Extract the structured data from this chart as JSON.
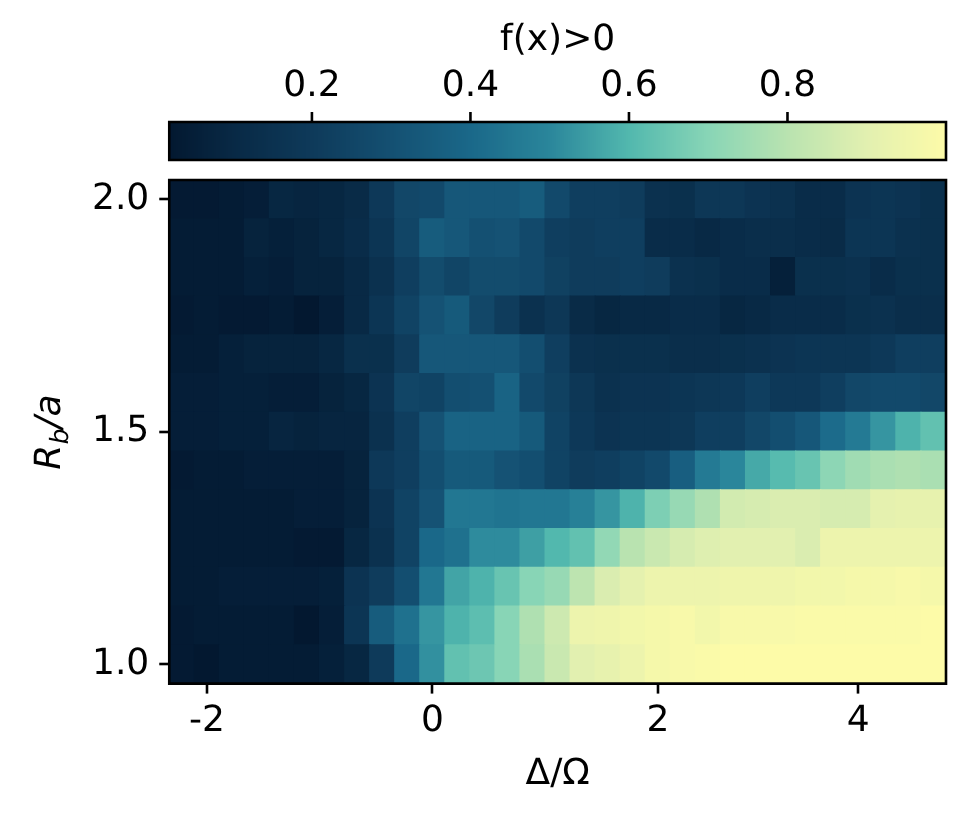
{
  "chart_data": {
    "type": "heatmap",
    "xlabel": "Δ/Ω",
    "ylabel": "R$_{b}$/a",
    "clabel": "f(x)>0",
    "categories": [
      null,
      "-2",
      null,
      null,
      null,
      null,
      null,
      null,
      null,
      null,
      "0",
      null,
      null,
      null,
      null,
      null,
      null,
      null,
      null,
      "2",
      null,
      null,
      null,
      null,
      null,
      null,
      null,
      "4",
      null,
      null,
      null
    ],
    "y_categories": [
      "2.0",
      null,
      null,
      null,
      null,
      null,
      "1.5",
      null,
      null,
      null,
      null,
      null,
      "1.0"
    ],
    "cells": [
      [
        0.03,
        0.03,
        0.04,
        0.05,
        0.09,
        0.08,
        0.09,
        0.11,
        0.19,
        0.26,
        0.27,
        0.33,
        0.33,
        0.33,
        0.35,
        0.27,
        0.22,
        0.22,
        0.21,
        0.15,
        0.14,
        0.18,
        0.18,
        0.16,
        0.15,
        0.12,
        0.12,
        0.16,
        0.17,
        0.16,
        0.14
      ],
      [
        0.04,
        0.04,
        0.04,
        0.07,
        0.06,
        0.07,
        0.09,
        0.12,
        0.17,
        0.25,
        0.35,
        0.33,
        0.3,
        0.31,
        0.27,
        0.22,
        0.21,
        0.22,
        0.22,
        0.12,
        0.12,
        0.1,
        0.12,
        0.13,
        0.13,
        0.12,
        0.11,
        0.17,
        0.17,
        0.15,
        0.14
      ],
      [
        0.04,
        0.04,
        0.04,
        0.06,
        0.05,
        0.07,
        0.07,
        0.1,
        0.15,
        0.22,
        0.28,
        0.25,
        0.28,
        0.28,
        0.27,
        0.23,
        0.21,
        0.21,
        0.22,
        0.21,
        0.15,
        0.14,
        0.12,
        0.12,
        0.06,
        0.14,
        0.14,
        0.15,
        0.12,
        0.14,
        0.14
      ],
      [
        0.03,
        0.04,
        0.03,
        0.03,
        0.04,
        0.02,
        0.05,
        0.1,
        0.17,
        0.24,
        0.31,
        0.34,
        0.26,
        0.21,
        0.15,
        0.18,
        0.11,
        0.09,
        0.1,
        0.1,
        0.12,
        0.12,
        0.09,
        0.1,
        0.12,
        0.12,
        0.12,
        0.14,
        0.15,
        0.13,
        0.13
      ],
      [
        0.04,
        0.04,
        0.06,
        0.07,
        0.07,
        0.07,
        0.09,
        0.14,
        0.14,
        0.21,
        0.33,
        0.33,
        0.33,
        0.33,
        0.29,
        0.22,
        0.15,
        0.14,
        0.14,
        0.14,
        0.13,
        0.13,
        0.14,
        0.15,
        0.16,
        0.17,
        0.17,
        0.17,
        0.19,
        0.22,
        0.22
      ],
      [
        0.05,
        0.05,
        0.06,
        0.06,
        0.05,
        0.05,
        0.07,
        0.09,
        0.16,
        0.25,
        0.24,
        0.29,
        0.3,
        0.38,
        0.27,
        0.23,
        0.18,
        0.15,
        0.16,
        0.16,
        0.17,
        0.18,
        0.19,
        0.22,
        0.19,
        0.19,
        0.22,
        0.26,
        0.27,
        0.27,
        0.26
      ],
      [
        0.05,
        0.05,
        0.06,
        0.06,
        0.08,
        0.07,
        0.08,
        0.08,
        0.15,
        0.22,
        0.31,
        0.38,
        0.38,
        0.38,
        0.34,
        0.24,
        0.19,
        0.16,
        0.17,
        0.17,
        0.18,
        0.22,
        0.22,
        0.26,
        0.29,
        0.33,
        0.41,
        0.46,
        0.53,
        0.59,
        0.63
      ],
      [
        0.03,
        0.04,
        0.04,
        0.05,
        0.05,
        0.05,
        0.05,
        0.07,
        0.19,
        0.22,
        0.29,
        0.34,
        0.34,
        0.31,
        0.29,
        0.24,
        0.21,
        0.22,
        0.24,
        0.27,
        0.36,
        0.46,
        0.5,
        0.57,
        0.61,
        0.64,
        0.71,
        0.75,
        0.77,
        0.78,
        0.77
      ],
      [
        0.04,
        0.04,
        0.04,
        0.04,
        0.04,
        0.05,
        0.05,
        0.07,
        0.16,
        0.24,
        0.31,
        0.45,
        0.45,
        0.44,
        0.45,
        0.45,
        0.48,
        0.53,
        0.59,
        0.68,
        0.73,
        0.78,
        0.86,
        0.87,
        0.88,
        0.88,
        0.87,
        0.87,
        0.91,
        0.92,
        0.92
      ],
      [
        0.04,
        0.04,
        0.04,
        0.04,
        0.04,
        0.03,
        0.03,
        0.09,
        0.15,
        0.24,
        0.4,
        0.43,
        0.51,
        0.51,
        0.55,
        0.6,
        0.63,
        0.72,
        0.8,
        0.84,
        0.87,
        0.89,
        0.9,
        0.9,
        0.9,
        0.88,
        0.94,
        0.94,
        0.94,
        0.94,
        0.94
      ],
      [
        0.04,
        0.04,
        0.05,
        0.05,
        0.05,
        0.05,
        0.06,
        0.16,
        0.21,
        0.29,
        0.45,
        0.56,
        0.59,
        0.64,
        0.7,
        0.73,
        0.81,
        0.88,
        0.91,
        0.94,
        0.94,
        0.94,
        0.95,
        0.95,
        0.95,
        0.96,
        0.96,
        0.97,
        0.97,
        0.98,
        0.97
      ],
      [
        0.03,
        0.04,
        0.04,
        0.04,
        0.04,
        0.02,
        0.05,
        0.17,
        0.35,
        0.43,
        0.53,
        0.59,
        0.62,
        0.7,
        0.78,
        0.85,
        0.94,
        0.95,
        0.96,
        0.97,
        0.98,
        0.96,
        0.98,
        0.98,
        0.98,
        0.99,
        0.99,
        0.99,
        0.99,
        0.99,
        1.0
      ],
      [
        0.03,
        0.02,
        0.04,
        0.04,
        0.04,
        0.04,
        0.06,
        0.09,
        0.2,
        0.4,
        0.52,
        0.63,
        0.65,
        0.7,
        0.77,
        0.84,
        0.9,
        0.92,
        0.94,
        0.97,
        0.98,
        0.99,
        1.0,
        1.0,
        1.0,
        1.0,
        1.0,
        1.0,
        1.0,
        1.0,
        1.0
      ]
    ],
    "clim": [
      0.02,
      1.0
    ],
    "cticks": [
      0.2,
      0.4,
      0.6,
      0.8
    ]
  }
}
